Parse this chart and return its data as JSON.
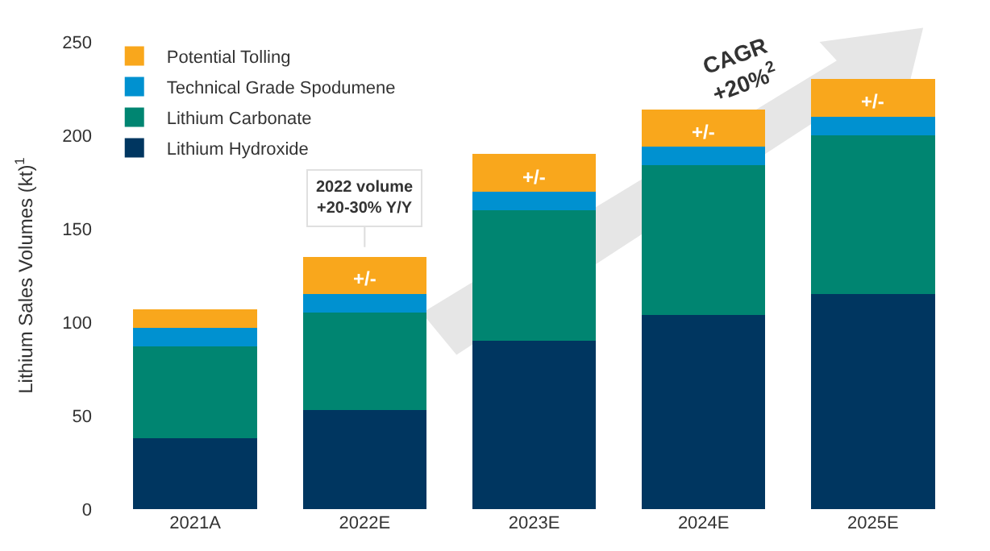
{
  "chart_data": {
    "type": "bar",
    "stacked": true,
    "ylabel": "Lithium Sales Volumes (kt)$^{1}$",
    "categories": [
      "2021A",
      "2022E",
      "2023E",
      "2024E",
      "2025E"
    ],
    "series": [
      {
        "name": "Lithium Hydroxide",
        "color": "#003660",
        "values": [
          38,
          53,
          90,
          104,
          115
        ]
      },
      {
        "name": "Lithium Carbonate",
        "color": "#008571",
        "values": [
          49,
          52,
          70,
          80,
          85
        ]
      },
      {
        "name": "Technical Grade Spodumene",
        "color": "#0091d0",
        "values": [
          10,
          10,
          10,
          10,
          10
        ]
      },
      {
        "name": "Potential Tolling",
        "color": "#f9a71c",
        "values": [
          10,
          20,
          20,
          20,
          20
        ]
      }
    ],
    "ylim": [
      0,
      250
    ],
    "yticks": [
      0,
      50,
      100,
      150,
      200,
      250
    ],
    "grid": false,
    "legend": "top left",
    "annotations": [
      {
        "text": "2022 volume\n+20-30% Y/Y",
        "x": "2022E",
        "y": 135
      },
      {
        "text": "+/-",
        "x": "2022E",
        "y": 135
      },
      {
        "text": "+/-",
        "x": "2023E",
        "y": 190
      },
      {
        "text": "+/-",
        "x": "2024E",
        "y": 214
      },
      {
        "text": "+/-",
        "x": "2025E",
        "y": 230
      },
      "CAGR\n+20%$^{2}$"
    ]
  }
}
